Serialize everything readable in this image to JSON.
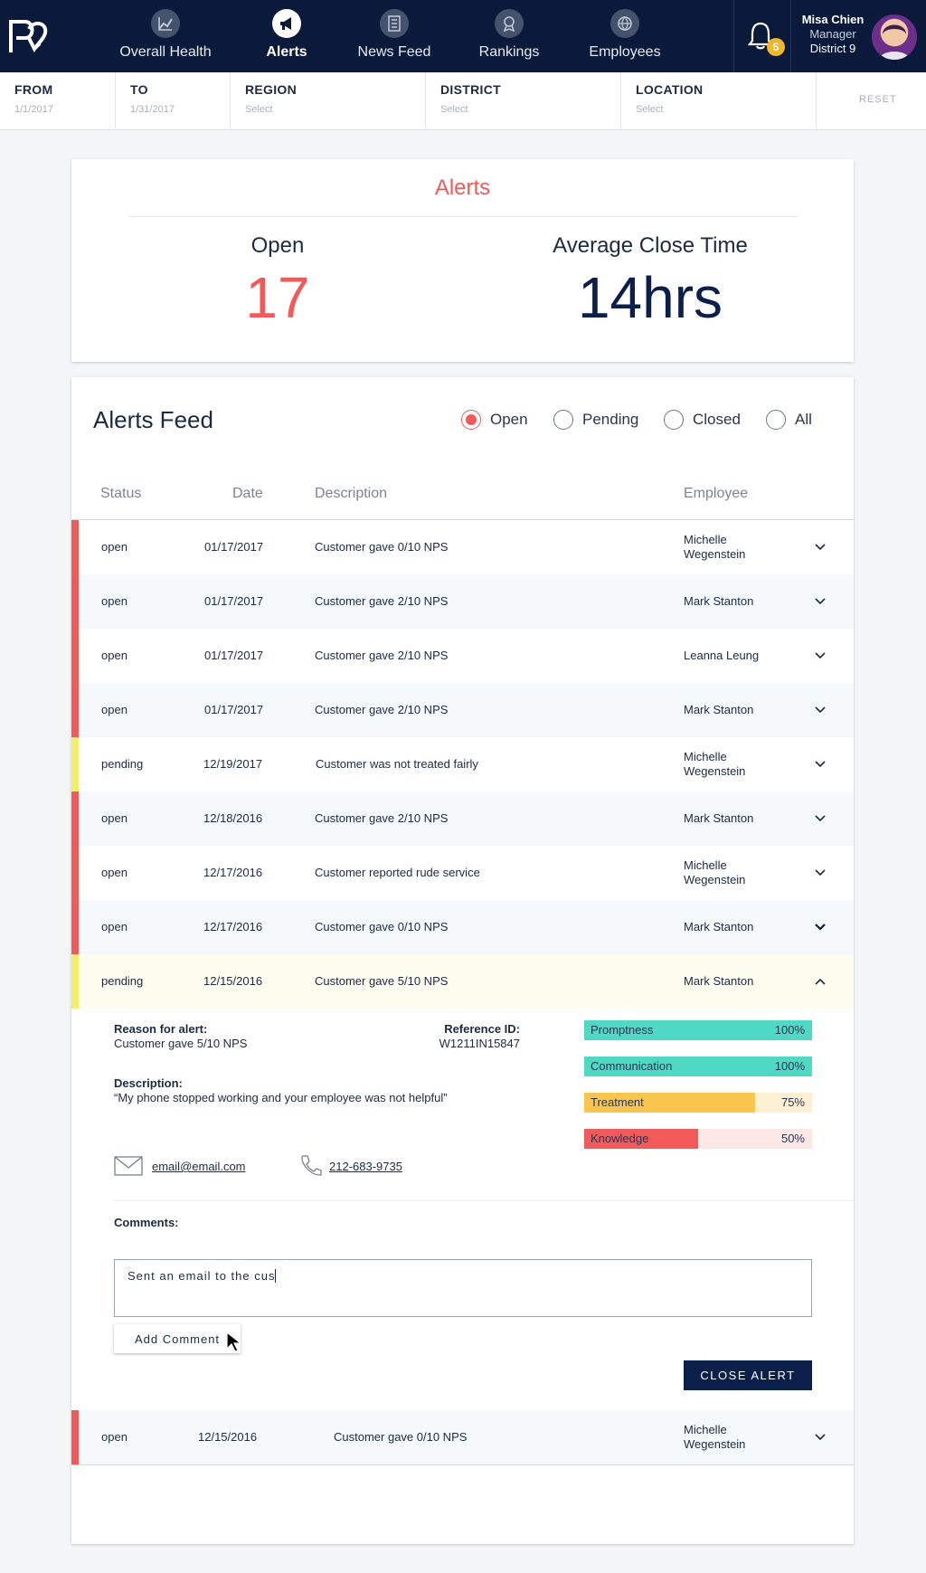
{
  "nav": {
    "items": [
      {
        "label": "Overall Health",
        "icon": "chart-icon"
      },
      {
        "label": "Alerts",
        "icon": "megaphone-icon"
      },
      {
        "label": "News Feed",
        "icon": "newspaper-icon"
      },
      {
        "label": "Rankings",
        "icon": "award-icon"
      },
      {
        "label": "Employees",
        "icon": "globe-icon"
      }
    ],
    "notification_count": "5",
    "user": {
      "name": "Misa Chien",
      "role": "Manager",
      "district": "District 9"
    }
  },
  "filters": {
    "from": {
      "label": "FROM",
      "value": "1/1/2017"
    },
    "to": {
      "label": "TO",
      "value": "1/31/2017"
    },
    "region": {
      "label": "REGION",
      "value": "Select"
    },
    "district": {
      "label": "DISTRICT",
      "value": "Select"
    },
    "location": {
      "label": "LOCATION",
      "value": "Select"
    },
    "reset": "RESET"
  },
  "summary": {
    "title": "Alerts",
    "open_label": "Open",
    "open_value": "17",
    "avg_label": "Average Close Time",
    "avg_value": "14hrs"
  },
  "feed": {
    "title": "Alerts Feed",
    "filters": [
      "Open",
      "Pending",
      "Closed",
      "All"
    ],
    "columns": {
      "status": "Status",
      "date": "Date",
      "description": "Description",
      "employee": "Employee"
    },
    "rows": [
      {
        "status": "open",
        "date": "01/17/2017",
        "description": "Customer gave 0/10 NPS",
        "employee": "Michelle Wegenstein"
      },
      {
        "status": "open",
        "date": "01/17/2017",
        "description": "Customer gave 2/10 NPS",
        "employee": "Mark Stanton"
      },
      {
        "status": "open",
        "date": "01/17/2017",
        "description": "Customer gave 2/10 NPS",
        "employee": "Leanna Leung"
      },
      {
        "status": "open",
        "date": "01/17/2017",
        "description": "Customer gave 2/10 NPS",
        "employee": "Mark Stanton"
      },
      {
        "status": "pending",
        "date": "12/19/2017",
        "description": "Customer was not treated fairly",
        "employee": "Michelle Wegenstein"
      },
      {
        "status": "open",
        "date": "12/18/2016",
        "description": "Customer gave 2/10 NPS",
        "employee": "Mark Stanton"
      },
      {
        "status": "open",
        "date": "12/17/2016",
        "description": "Customer reported rude service",
        "employee": "Michelle Wegenstein"
      },
      {
        "status": "open",
        "date": "12/17/2016",
        "description": "Customer gave 0/10 NPS",
        "employee": "Mark Stanton"
      },
      {
        "status": "pending",
        "date": "12/15/2016",
        "description": "Customer gave 5/10 NPS",
        "employee": "Mark Stanton"
      },
      {
        "status": "open",
        "date": "12/15/2016",
        "description": "Customer gave 0/10 NPS",
        "employee": "Michelle Wegenstein"
      }
    ],
    "detail": {
      "reason_label": "Reason for alert:",
      "reason": "Customer gave 5/10 NPS",
      "ref_label": "Reference ID:",
      "ref_id": "W1211IN15847",
      "desc_label": "Description:",
      "description": "“My phone stopped working and your employee was not helpful”",
      "email": "email@email.com",
      "phone": "212-683-9735",
      "scores": [
        {
          "name": "Promptness",
          "value": 100,
          "label": "100%",
          "color": "#4fd8c4",
          "track": "#4fd8c4"
        },
        {
          "name": "Communication",
          "value": 100,
          "label": "100%",
          "color": "#4fd8c4",
          "track": "#4fd8c4"
        },
        {
          "name": "Treatment",
          "value": 75,
          "label": "75%",
          "color": "#f8c54f",
          "track": "#fdf0d2"
        },
        {
          "name": "Knowledge",
          "value": 50,
          "label": "50%",
          "color": "#f25a5a",
          "track": "#fde6e6"
        }
      ],
      "comments_label": "Comments:",
      "comment_text": "Sent an email to the cus",
      "add_comment": "Add Comment",
      "close_alert": "CLOSE ALERT"
    }
  },
  "colors": {
    "open": "#f25a5a",
    "pending": "#f3ee6b",
    "navy": "#0b1a3a",
    "accent": "#f25a5a"
  }
}
